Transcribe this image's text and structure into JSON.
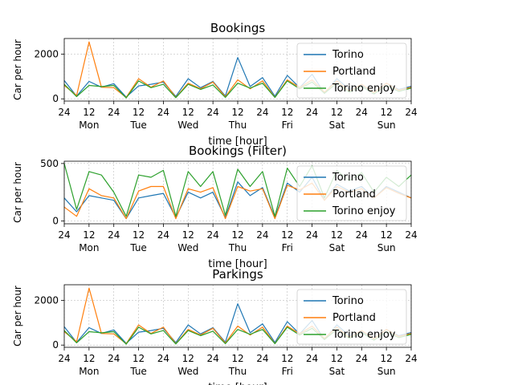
{
  "chart_data": [
    {
      "type": "line",
      "title": "Bookings",
      "xlabel": "time [hour]",
      "ylabel": "Car per hour",
      "ylim": [
        -100,
        2700
      ],
      "yticks": [
        0,
        2000
      ],
      "xticks": [
        "24",
        "12",
        "24",
        "12",
        "24",
        "12",
        "24",
        "12",
        "24",
        "12",
        "24",
        "12",
        "24",
        "12",
        "24"
      ],
      "days": [
        "Mon",
        "Tue",
        "Wed",
        "Thu",
        "Fri",
        "Sat",
        "Sun"
      ],
      "grid": true,
      "legend": "upper right",
      "x_hours": [
        0,
        6,
        12,
        18,
        24,
        30,
        36,
        42,
        48,
        54,
        60,
        66,
        72,
        78,
        84,
        90,
        96,
        102,
        108,
        114,
        120,
        126,
        132,
        138,
        144,
        150,
        156,
        162,
        168
      ],
      "series": [
        {
          "name": "Torino",
          "color": "#1f77b4",
          "values": [
            820,
            120,
            780,
            520,
            680,
            80,
            580,
            650,
            750,
            110,
            900,
            500,
            780,
            130,
            1850,
            550,
            950,
            120,
            1050,
            500,
            1100,
            250,
            900,
            420,
            600,
            300,
            700,
            420,
            560
          ]
        },
        {
          "name": "Portland",
          "color": "#ff7f0e",
          "values": [
            600,
            150,
            2550,
            520,
            500,
            60,
            900,
            520,
            800,
            60,
            700,
            450,
            750,
            90,
            850,
            450,
            800,
            70,
            850,
            500,
            850,
            300,
            800,
            350,
            650,
            280,
            700,
            380,
            520
          ]
        },
        {
          "name": "Torino enjoy",
          "color": "#2ca02c",
          "values": [
            650,
            100,
            600,
            550,
            600,
            40,
            800,
            500,
            650,
            50,
            650,
            420,
            620,
            60,
            700,
            480,
            700,
            60,
            800,
            450,
            750,
            250,
            700,
            300,
            550,
            220,
            600,
            330,
            480
          ]
        }
      ]
    },
    {
      "type": "line",
      "title": "Bookings (Filter)",
      "xlabel": "time [hour]",
      "ylabel": "Car per hour",
      "ylim": [
        -25,
        520
      ],
      "yticks": [
        0,
        500
      ],
      "xticks": [
        "24",
        "12",
        "24",
        "12",
        "24",
        "12",
        "24",
        "12",
        "24",
        "12",
        "24",
        "12",
        "24",
        "12",
        "24"
      ],
      "days": [
        "Mon",
        "Tue",
        "Wed",
        "Thu",
        "Fri",
        "Sat",
        "Sun"
      ],
      "grid": true,
      "legend": "upper right",
      "x_hours": [
        0,
        6,
        12,
        18,
        24,
        30,
        36,
        42,
        48,
        54,
        60,
        66,
        72,
        78,
        84,
        90,
        96,
        102,
        108,
        114,
        120,
        126,
        132,
        138,
        144,
        150,
        156,
        162,
        168
      ],
      "series": [
        {
          "name": "Torino",
          "color": "#1f77b4",
          "values": [
            200,
            80,
            220,
            200,
            180,
            20,
            200,
            220,
            240,
            30,
            250,
            200,
            250,
            30,
            340,
            220,
            290,
            30,
            330,
            250,
            380,
            180,
            320,
            260,
            300,
            200,
            300,
            250,
            200
          ]
        },
        {
          "name": "Portland",
          "color": "#ff7f0e",
          "values": [
            120,
            40,
            280,
            220,
            200,
            20,
            260,
            300,
            300,
            20,
            280,
            250,
            290,
            20,
            300,
            260,
            280,
            20,
            310,
            270,
            330,
            180,
            300,
            250,
            280,
            200,
            290,
            240,
            200
          ]
        },
        {
          "name": "Torino enjoy",
          "color": "#2ca02c",
          "values": [
            500,
            100,
            430,
            400,
            250,
            40,
            400,
            380,
            440,
            40,
            430,
            300,
            430,
            50,
            450,
            300,
            430,
            40,
            460,
            300,
            480,
            200,
            440,
            350,
            420,
            250,
            380,
            300,
            400
          ]
        }
      ]
    },
    {
      "type": "line",
      "title": "Parkings",
      "xlabel": "time [hour]",
      "ylabel": "Car per hour",
      "ylim": [
        -100,
        2700
      ],
      "yticks": [
        0,
        2000
      ],
      "xticks": [
        "24",
        "12",
        "24",
        "12",
        "24",
        "12",
        "24",
        "12",
        "24",
        "12",
        "24",
        "12",
        "24",
        "12",
        "24"
      ],
      "days": [
        "Mon",
        "Tue",
        "Wed",
        "Thu",
        "Fri",
        "Sat",
        "Sun"
      ],
      "grid": true,
      "legend": "upper right",
      "x_hours": [
        0,
        6,
        12,
        18,
        24,
        30,
        36,
        42,
        48,
        54,
        60,
        66,
        72,
        78,
        84,
        90,
        96,
        102,
        108,
        114,
        120,
        126,
        132,
        138,
        144,
        150,
        156,
        162,
        168
      ],
      "series": [
        {
          "name": "Torino",
          "color": "#1f77b4",
          "values": [
            820,
            120,
            780,
            520,
            680,
            80,
            580,
            650,
            750,
            110,
            900,
            500,
            780,
            130,
            1850,
            550,
            950,
            120,
            1050,
            500,
            1100,
            250,
            900,
            420,
            600,
            300,
            700,
            420,
            560
          ]
        },
        {
          "name": "Portland",
          "color": "#ff7f0e",
          "values": [
            600,
            150,
            2550,
            520,
            500,
            60,
            900,
            520,
            800,
            60,
            700,
            450,
            750,
            90,
            850,
            450,
            800,
            70,
            850,
            500,
            850,
            300,
            800,
            350,
            650,
            280,
            700,
            380,
            520
          ]
        },
        {
          "name": "Torino enjoy",
          "color": "#2ca02c",
          "values": [
            650,
            100,
            600,
            550,
            600,
            40,
            800,
            500,
            650,
            50,
            650,
            420,
            620,
            60,
            700,
            480,
            700,
            60,
            800,
            450,
            750,
            250,
            700,
            300,
            550,
            220,
            600,
            330,
            480
          ]
        }
      ]
    }
  ]
}
